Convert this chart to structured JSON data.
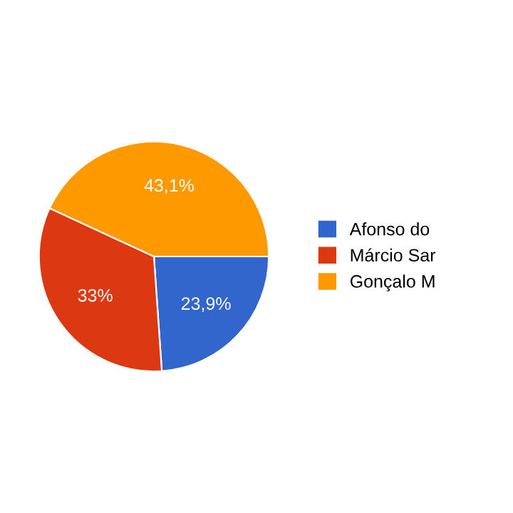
{
  "chart_data": {
    "type": "pie",
    "categories": [
      "Afonso do",
      "Márcio Sar",
      "Gonçalo M"
    ],
    "values": [
      23.9,
      33,
      43.1
    ],
    "value_labels": [
      "23,9%",
      "33%",
      "43,1%"
    ],
    "colors": [
      "#3366cc",
      "#dc3912",
      "#ff9900"
    ],
    "legend": "right"
  }
}
